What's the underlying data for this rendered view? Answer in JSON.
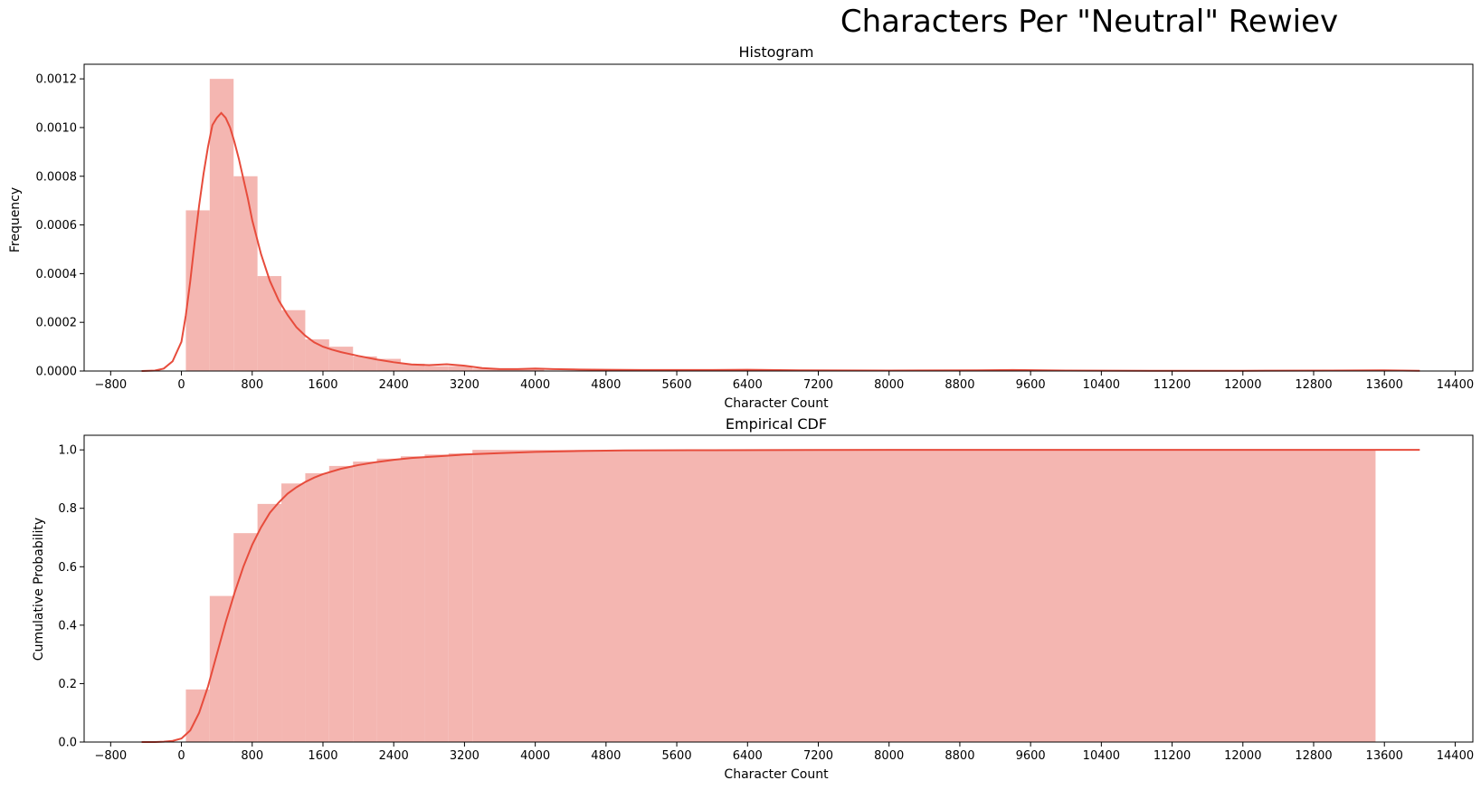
{
  "figure": {
    "suptitle": "Characters Per \"Neutral\" Rewiev",
    "colors": {
      "bars": "#f4b6b1",
      "line": "#e74c3c"
    }
  },
  "chart_data": [
    {
      "type": "bar",
      "title": "Histogram",
      "xlabel": "Character Count",
      "ylabel": "Frequency",
      "xlim": [
        -1100,
        14600
      ],
      "ylim": [
        0,
        0.00126
      ],
      "xticks": [
        -800,
        0,
        800,
        1600,
        2400,
        3200,
        4000,
        4800,
        5600,
        6400,
        7200,
        8000,
        8800,
        9600,
        10400,
        11200,
        12000,
        12800,
        13600,
        14400
      ],
      "xtick_labels": [
        "−800",
        "0",
        "800",
        "1600",
        "2400",
        "3200",
        "4000",
        "4800",
        "5600",
        "6400",
        "7200",
        "8000",
        "8800",
        "9600",
        "10400",
        "11200",
        "12000",
        "12800",
        "13600",
        "14400"
      ],
      "yticks": [
        0,
        0.0002,
        0.0004,
        0.0006,
        0.0008,
        0.001,
        0.0012
      ],
      "ytick_labels": [
        "0.0000",
        "0.0002",
        "0.0004",
        "0.0006",
        "0.0008",
        "0.0010",
        "0.0012"
      ],
      "bin_width": 270,
      "bin_starts": [
        50,
        320,
        590,
        860,
        1130,
        1400,
        1670,
        1940,
        2210,
        2480,
        2750,
        3020,
        3290,
        3560,
        3830
      ],
      "values": [
        0.00066,
        0.0012,
        0.0008,
        0.00039,
        0.00025,
        0.00013,
        0.0001,
        6e-05,
        5e-05,
        3e-05,
        2e-05,
        2e-05,
        1e-05,
        1e-05,
        1e-05
      ],
      "kde_line": {
        "x": [
          -450,
          -300,
          -200,
          -100,
          0,
          50,
          100,
          150,
          200,
          250,
          300,
          350,
          400,
          450,
          500,
          550,
          600,
          650,
          700,
          750,
          800,
          850,
          900,
          1000,
          1100,
          1200,
          1300,
          1400,
          1500,
          1600,
          1700,
          1800,
          2000,
          2200,
          2400,
          2600,
          2800,
          3000,
          3200,
          3400,
          3600,
          3800,
          4000,
          4200,
          4500,
          4800,
          5200,
          5600,
          6000,
          6400,
          7000,
          8000,
          9000,
          9400,
          10000,
          11000,
          12000,
          13000,
          13600,
          14000
        ],
        "y": [
          0,
          2e-06,
          1e-05,
          4e-05,
          0.00012,
          0.00023,
          0.00037,
          0.00053,
          0.00068,
          0.00081,
          0.00092,
          0.00101,
          0.00104,
          0.00106,
          0.00104,
          0.001,
          0.00094,
          0.00087,
          0.00079,
          0.00071,
          0.00062,
          0.00055,
          0.00048,
          0.00037,
          0.00029,
          0.00023,
          0.00018,
          0.000145,
          0.000118,
          0.0001,
          8.8e-05,
          7.8e-05,
          6.2e-05,
          4.8e-05,
          3.6e-05,
          2.7e-05,
          2.4e-05,
          2.8e-05,
          2.2e-05,
          1.2e-05,
          8e-06,
          8e-06,
          1e-05,
          8e-06,
          6e-06,
          5e-06,
          4e-06,
          4e-06,
          4e-06,
          5e-06,
          3e-06,
          2e-06,
          3e-06,
          4e-06,
          2e-06,
          1e-06,
          1e-06,
          2e-06,
          3e-06,
          1e-06
        ]
      }
    },
    {
      "type": "bar",
      "title": "Empirical CDF",
      "xlabel": "Character Count",
      "ylabel": "Cumulative Probability",
      "xlim": [
        -1100,
        14600
      ],
      "ylim": [
        0,
        1.05
      ],
      "xticks": [
        -800,
        0,
        800,
        1600,
        2400,
        3200,
        4000,
        4800,
        5600,
        6400,
        7200,
        8000,
        8800,
        9600,
        10400,
        11200,
        12000,
        12800,
        13600,
        14400
      ],
      "xtick_labels": [
        "−800",
        "0",
        "800",
        "1600",
        "2400",
        "3200",
        "4000",
        "4800",
        "5600",
        "6400",
        "7200",
        "8000",
        "8800",
        "9600",
        "10400",
        "11200",
        "12000",
        "12800",
        "13600",
        "14400"
      ],
      "yticks": [
        0,
        0.2,
        0.4,
        0.6,
        0.8,
        1.0
      ],
      "ytick_labels": [
        "0.0",
        "0.2",
        "0.4",
        "0.6",
        "0.8",
        "1.0"
      ],
      "bin_width": 270,
      "bin_starts": [
        50,
        320,
        590,
        860,
        1130,
        1400,
        1670,
        1940,
        2210,
        2480,
        2750,
        3020
      ],
      "values": [
        0.18,
        0.5,
        0.715,
        0.815,
        0.885,
        0.92,
        0.945,
        0.96,
        0.97,
        0.978,
        0.984,
        0.988
      ],
      "tail_fill": {
        "from": 3290,
        "to": 13500,
        "value": 1.0
      },
      "cdf_line": {
        "x": [
          -450,
          -300,
          -200,
          -100,
          0,
          100,
          200,
          300,
          400,
          500,
          600,
          700,
          800,
          900,
          1000,
          1100,
          1200,
          1300,
          1400,
          1500,
          1600,
          1800,
          2000,
          2200,
          2400,
          2600,
          2800,
          3000,
          3200,
          3600,
          4000,
          4500,
          5000,
          6000,
          8000,
          10000,
          12000,
          14000
        ],
        "y": [
          0,
          0,
          0.001,
          0.004,
          0.012,
          0.04,
          0.1,
          0.19,
          0.3,
          0.41,
          0.51,
          0.6,
          0.675,
          0.735,
          0.785,
          0.82,
          0.85,
          0.872,
          0.89,
          0.905,
          0.917,
          0.935,
          0.948,
          0.958,
          0.966,
          0.972,
          0.976,
          0.98,
          0.984,
          0.989,
          0.993,
          0.996,
          0.998,
          0.999,
          1.0,
          1.0,
          1.0,
          1.0
        ]
      }
    }
  ]
}
